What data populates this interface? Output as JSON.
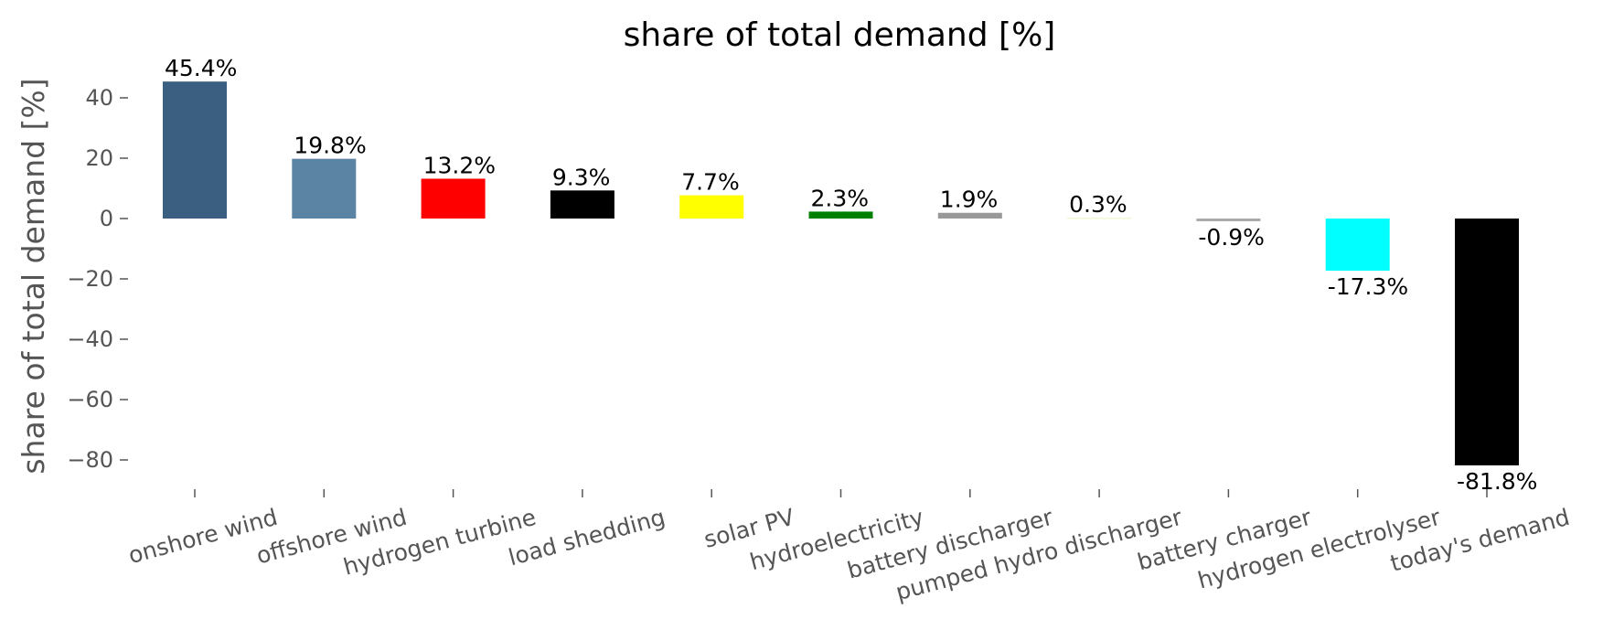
{
  "chart_data": {
    "type": "bar",
    "title": "share of total demand [%]",
    "xlabel": "",
    "ylabel": "share of total demand [%]",
    "ylim": [
      -88,
      50
    ],
    "yticks": [
      40,
      20,
      0,
      -20,
      -40,
      -60,
      -80
    ],
    "ytick_labels": [
      "40",
      "20",
      "0",
      "−20",
      "−40",
      "−60",
      "−80"
    ],
    "grid": false,
    "legend": "none",
    "categories": [
      "onshore wind",
      "offshore wind",
      "hydrogen turbine",
      "load shedding",
      "solar PV",
      "hydroelectricity",
      "battery discharger",
      "pumped hydro discharger",
      "battery charger",
      "hydrogen electrolyser",
      "today's demand"
    ],
    "values": [
      45.4,
      19.8,
      13.2,
      9.3,
      7.7,
      2.3,
      1.9,
      0.3,
      -0.9,
      -17.3,
      -81.8
    ],
    "value_labels": [
      "45.4%",
      "19.8%",
      "13.2%",
      "9.3%",
      "7.7%",
      "2.3%",
      "1.9%",
      "0.3%",
      "-0.9%",
      "-17.3%",
      "-81.8%"
    ],
    "colors": [
      "#3a5f80",
      "#5b83a4",
      "#ff0000",
      "#000000",
      "#ffff00",
      "#008000",
      "#999999",
      "#f3f4d0",
      "#aaaaaa",
      "#00ffff",
      "#000000"
    ]
  }
}
